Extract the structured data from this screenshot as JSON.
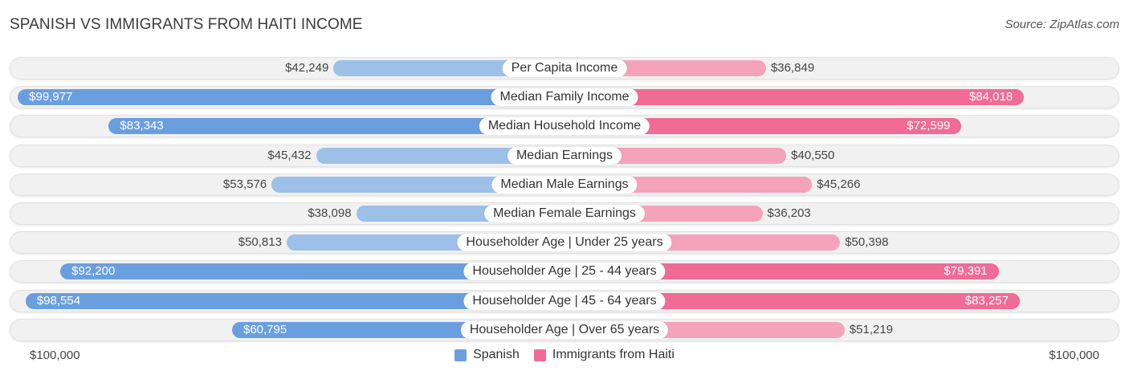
{
  "title": "SPANISH VS IMMIGRANTS FROM HAITI INCOME",
  "source": "Source: ZipAtlas.com",
  "colors": {
    "spanish": "#6a9fdf",
    "spanish_light": "#9cc0e8",
    "haiti": "#f06b96",
    "haiti_light": "#f5a3bd"
  },
  "chart_data": {
    "type": "bar",
    "orientation": "horizontal-diverging",
    "title": "SPANISH VS IMMIGRANTS FROM HAITI INCOME",
    "categories": [
      "Per Capita Income",
      "Median Family Income",
      "Median Household Income",
      "Median Earnings",
      "Median Male Earnings",
      "Median Female Earnings",
      "Householder Age | Under 25 years",
      "Householder Age | 25 - 44 years",
      "Householder Age | 45 - 64 years",
      "Householder Age | Over 65 years"
    ],
    "series": [
      {
        "name": "Spanish",
        "side": "left",
        "values": [
          42249,
          99977,
          83343,
          45432,
          53576,
          38098,
          50813,
          92200,
          98554,
          60795
        ],
        "labels": [
          "$42,249",
          "$99,977",
          "$83,343",
          "$45,432",
          "$53,576",
          "$38,098",
          "$50,813",
          "$92,200",
          "$98,554",
          "$60,795"
        ]
      },
      {
        "name": "Immigrants from Haiti",
        "side": "right",
        "values": [
          36849,
          84018,
          72599,
          40550,
          45266,
          36203,
          50398,
          79391,
          83257,
          51219
        ],
        "labels": [
          "$36,849",
          "$84,018",
          "$72,599",
          "$40,550",
          "$45,266",
          "$36,203",
          "$50,398",
          "$79,391",
          "$83,257",
          "$51,219"
        ]
      }
    ],
    "xlim": [
      0,
      100000
    ],
    "axis_labels": {
      "left": "$100,000",
      "right": "$100,000"
    },
    "legend": [
      "Spanish",
      "Immigrants from Haiti"
    ],
    "legend_position": "bottom-center"
  }
}
